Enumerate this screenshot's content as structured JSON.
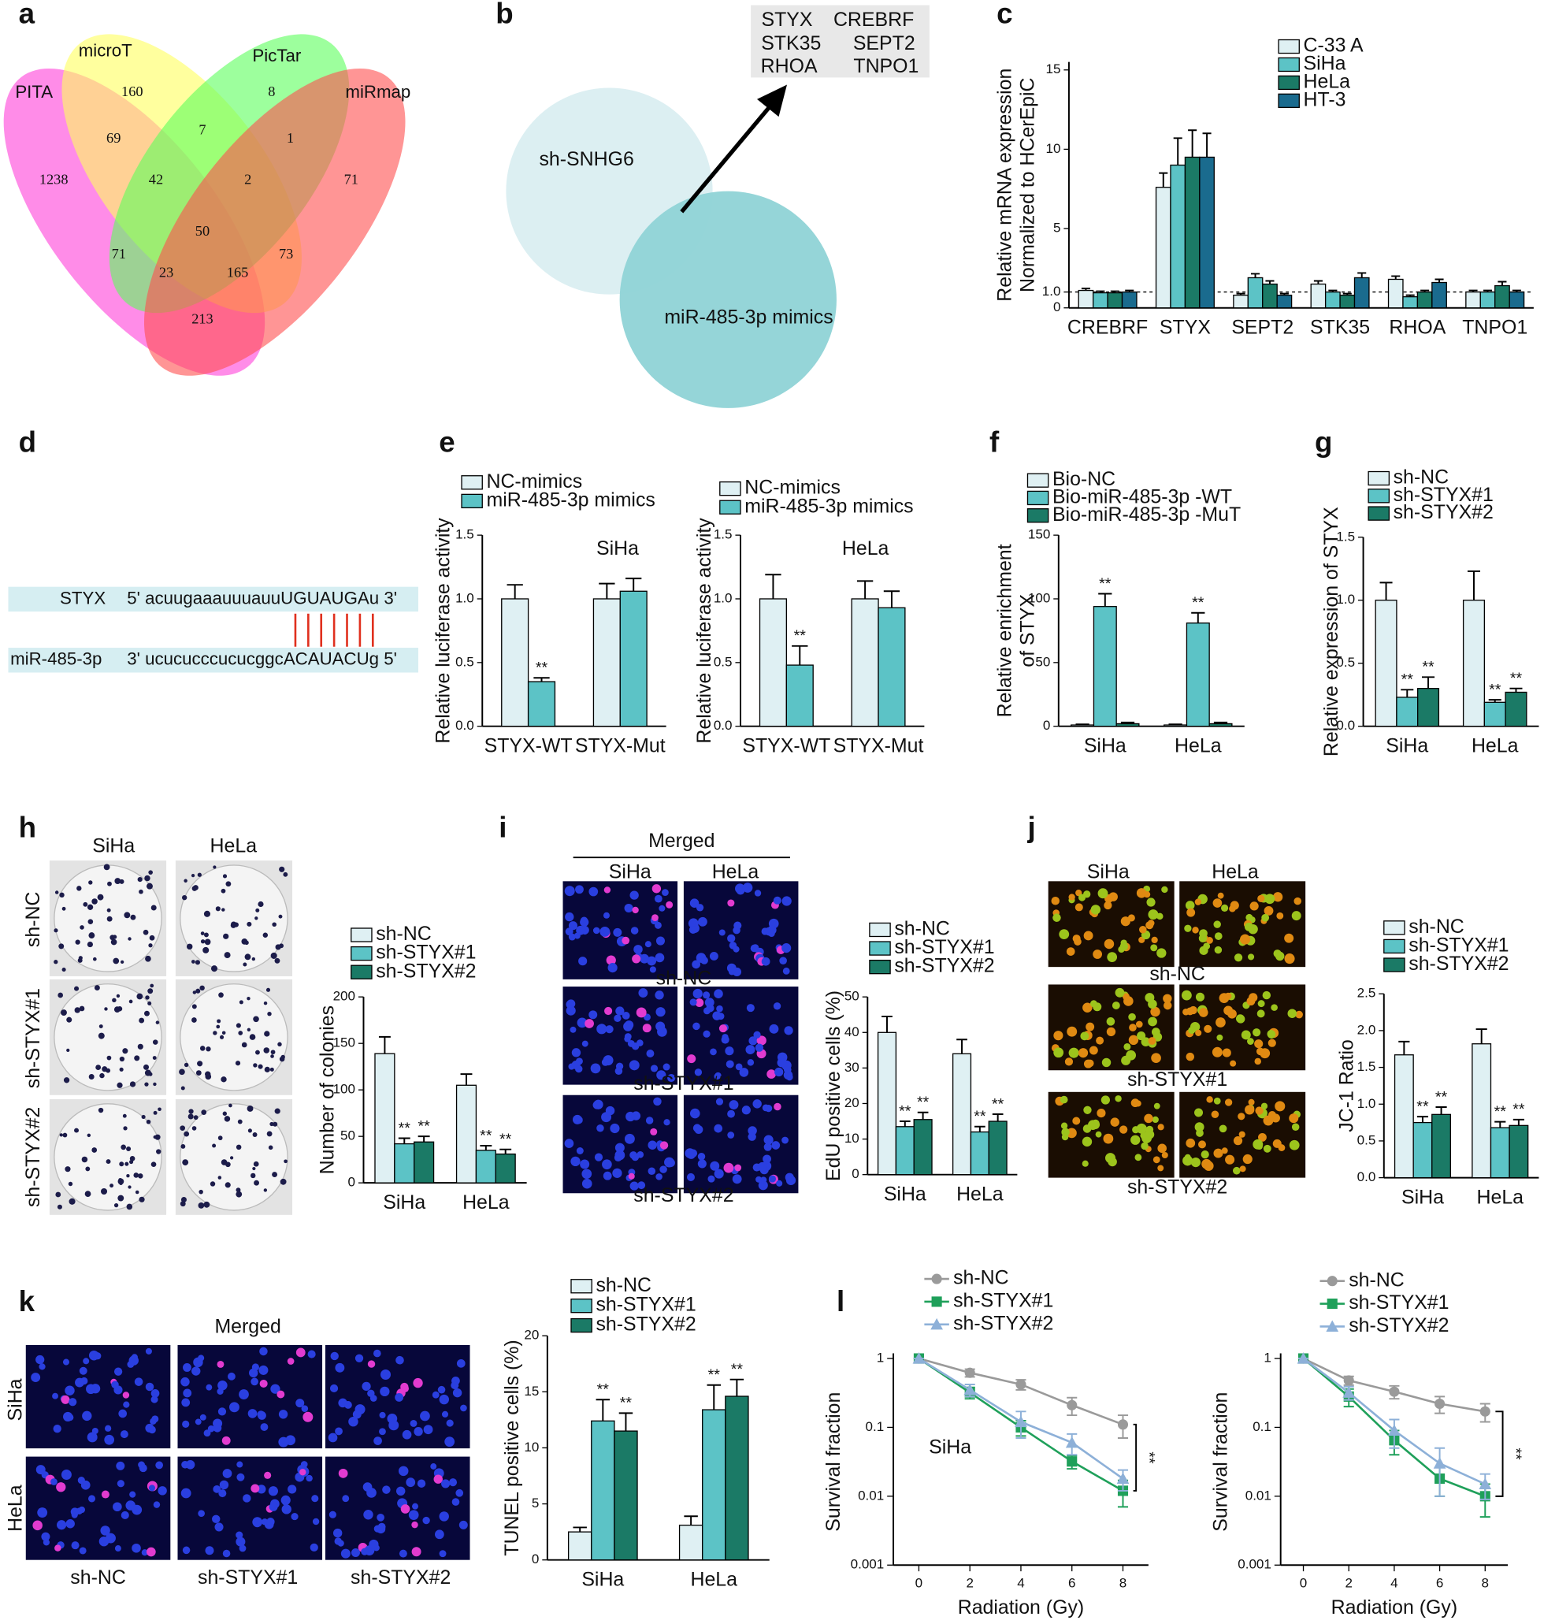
{
  "panel_labels": [
    "a",
    "b",
    "c",
    "d",
    "e",
    "f",
    "g",
    "h",
    "i",
    "j",
    "k",
    "l"
  ],
  "venn_a": {
    "sets": [
      "PITA",
      "microT",
      "PicTar",
      "miRmap"
    ],
    "regions": [
      1238,
      160,
      8,
      71,
      69,
      7,
      1,
      42,
      2,
      50,
      71,
      73,
      23,
      165,
      213
    ]
  },
  "venn_b": {
    "sets": [
      "sh-SNHG6",
      "miR-485-3p mimics"
    ],
    "genes": [
      "STYX",
      "CREBRF",
      "STK35",
      "SEPT2",
      "RHOA",
      "TNPO1"
    ]
  },
  "panel_d": {
    "rows": [
      {
        "name": "STYX",
        "sequence": "5' acuugaaauuuauuUGUAUGAu 3'"
      },
      {
        "name": "miR-485-3p",
        "sequence": "3' ucucucccucucggcACAUACUg 5'"
      }
    ]
  },
  "panel_h_images": {
    "columns": [
      "SiHa",
      "HeLa"
    ],
    "rows": [
      "sh-NC",
      "sh-STYX#1",
      "sh-STYX#2"
    ]
  },
  "panel_i_images": {
    "title": "Merged",
    "columns": [
      "SiHa",
      "HeLa"
    ],
    "rows": [
      "sh-NC",
      "sh-STYX#1",
      "sh-STYX#2"
    ]
  },
  "panel_j_images": {
    "columns": [
      "SiHa",
      "HeLa"
    ],
    "rows": [
      "sh-NC",
      "sh-STYX#1",
      "sh-STYX#2"
    ]
  },
  "panel_k_images": {
    "title": "Merged",
    "columns": [
      "sh-NC",
      "sh-STYX#1",
      "sh-STYX#2"
    ],
    "rows": [
      "SiHa",
      "HeLa"
    ]
  },
  "chart_data": [
    {
      "type": "bar",
      "ylabel": [
        "Relative mRNA expression",
        "Normalized to HCerEpiC"
      ],
      "categories": [
        "CREBRF",
        "STYX",
        "SEPT2",
        "STK35",
        "RHOA",
        "TNPO1"
      ],
      "series": [
        {
          "name": "C-33 A",
          "color": "#dff0f3",
          "values": [
            1.1,
            7.6,
            0.8,
            1.5,
            1.8,
            1.0
          ],
          "errors": [
            0.12,
            0.9,
            0.1,
            0.2,
            0.2,
            0.1
          ]
        },
        {
          "name": "SiHa",
          "color": "#5cc3c6",
          "values": [
            0.95,
            9.0,
            1.9,
            1.0,
            0.7,
            1.0
          ],
          "errors": [
            0.1,
            1.7,
            0.25,
            0.1,
            0.1,
            0.1
          ]
        },
        {
          "name": "HeLa",
          "color": "#1b7a66",
          "values": [
            0.95,
            9.5,
            1.5,
            0.8,
            1.0,
            1.4
          ],
          "errors": [
            0.1,
            1.7,
            0.2,
            0.1,
            0.1,
            0.25
          ]
        },
        {
          "name": "HT-3",
          "color": "#1a6b8e",
          "values": [
            1.0,
            9.5,
            0.8,
            1.9,
            1.6,
            1.0
          ],
          "errors": [
            0.1,
            1.5,
            0.1,
            0.3,
            0.2,
            0.1
          ]
        }
      ],
      "ylim": [
        0,
        15.5
      ],
      "yticks": [
        0,
        {
          "value": 1,
          "label": "1.0"
        },
        5,
        10,
        15
      ],
      "reference_line": 1
    },
    {
      "type": "bar",
      "subtitle": "SiHa",
      "ylabel": "Relative luciferase activity",
      "categories": [
        "STYX-WT",
        "STYX-Mut"
      ],
      "series": [
        {
          "name": "NC-mimics",
          "color": "#dff0f3",
          "values": [
            1.0,
            1.0
          ],
          "errors": [
            0.11,
            0.12
          ]
        },
        {
          "name": "miR-485-3p mimics",
          "color": "#5cc3c6",
          "values": [
            0.35,
            1.06
          ],
          "errors": [
            0.03,
            0.1
          ],
          "significance": [
            "**",
            null
          ]
        }
      ],
      "ylim": [
        0,
        1.5
      ],
      "yticks": [
        {
          "value": 0,
          "label": "0.0"
        },
        0.5,
        {
          "value": 1,
          "label": "1.0"
        },
        1.5
      ]
    },
    {
      "type": "bar",
      "subtitle": "HeLa",
      "ylabel": "Relative luciferase activity",
      "categories": [
        "STYX-WT",
        "STYX-Mut"
      ],
      "series": [
        {
          "name": "NC-mimics",
          "color": "#dff0f3",
          "values": [
            1.0,
            1.0
          ],
          "errors": [
            0.19,
            0.14
          ]
        },
        {
          "name": "miR-485-3p mimics",
          "color": "#5cc3c6",
          "values": [
            0.48,
            0.93
          ],
          "errors": [
            0.15,
            0.13
          ],
          "significance": [
            "**",
            null
          ]
        }
      ],
      "ylim": [
        0,
        1.5
      ],
      "yticks": [
        {
          "value": 0,
          "label": "0.0"
        },
        0.5,
        {
          "value": 1,
          "label": "1.0"
        },
        1.5
      ]
    },
    {
      "type": "bar",
      "ylabel": [
        "Relative enrichment",
        "of STYX"
      ],
      "categories": [
        "SiHa",
        "HeLa"
      ],
      "series": [
        {
          "name": "Bio-NC",
          "color": "#dff0f3",
          "values": [
            1,
            1
          ],
          "errors": [
            0.5,
            0.5
          ]
        },
        {
          "name": "Bio-miR-485-3p -WT",
          "color": "#5cc3c6",
          "values": [
            94,
            81
          ],
          "errors": [
            10,
            8
          ],
          "significance": [
            "**",
            "**"
          ]
        },
        {
          "name": "Bio-miR-485-3p -MuT",
          "color": "#1b7a66",
          "values": [
            2,
            2
          ],
          "errors": [
            1,
            1
          ]
        }
      ],
      "ylim": [
        0,
        150
      ],
      "yticks": [
        0,
        50,
        100,
        150
      ]
    },
    {
      "type": "bar",
      "ylabel": "Relative expression of STYX",
      "categories": [
        "SiHa",
        "HeLa"
      ],
      "series": [
        {
          "name": "sh-NC",
          "color": "#dff0f3",
          "values": [
            1.0,
            1.0
          ],
          "errors": [
            0.14,
            0.23
          ]
        },
        {
          "name": "sh-STYX#1",
          "color": "#5cc3c6",
          "values": [
            0.23,
            0.19
          ],
          "errors": [
            0.06,
            0.02
          ],
          "significance": [
            "**",
            "**"
          ]
        },
        {
          "name": "sh-STYX#2",
          "color": "#1b7a66",
          "values": [
            0.3,
            0.27
          ],
          "errors": [
            0.09,
            0.03
          ],
          "significance": [
            "**",
            "**"
          ]
        }
      ],
      "ylim": [
        0,
        1.5
      ],
      "yticks": [
        {
          "value": 0,
          "label": "0.0"
        },
        0.5,
        {
          "value": 1,
          "label": "1.0"
        },
        1.5
      ]
    },
    {
      "type": "bar",
      "ylabel": "Number of colonies",
      "categories": [
        "SiHa",
        "HeLa"
      ],
      "series": [
        {
          "name": "sh-NC",
          "color": "#dff0f3",
          "values": [
            139,
            105
          ],
          "errors": [
            18,
            12
          ]
        },
        {
          "name": "sh-STYX#1",
          "color": "#5cc3c6",
          "values": [
            42,
            35
          ],
          "errors": [
            6,
            5
          ],
          "significance": [
            "**",
            "**"
          ]
        },
        {
          "name": "sh-STYX#2",
          "color": "#1b7a66",
          "values": [
            44,
            31
          ],
          "errors": [
            6,
            5
          ],
          "significance": [
            "**",
            "**"
          ]
        }
      ],
      "ylim": [
        0,
        200
      ],
      "yticks": [
        0,
        50,
        100,
        150,
        200
      ]
    },
    {
      "type": "bar",
      "ylabel": "EdU positive cells (%)",
      "categories": [
        "SiHa",
        "HeLa"
      ],
      "series": [
        {
          "name": "sh-NC",
          "color": "#dff0f3",
          "values": [
            40,
            34
          ],
          "errors": [
            4.5,
            4
          ]
        },
        {
          "name": "sh-STYX#1",
          "color": "#5cc3c6",
          "values": [
            13.5,
            12
          ],
          "errors": [
            1.5,
            1.5
          ],
          "significance": [
            "**",
            "**"
          ]
        },
        {
          "name": "sh-STYX#2",
          "color": "#1b7a66",
          "values": [
            15.5,
            15
          ],
          "errors": [
            2,
            2
          ],
          "significance": [
            "**",
            "**"
          ]
        }
      ],
      "ylim": [
        0,
        50
      ],
      "yticks": [
        0,
        10,
        20,
        30,
        40,
        50
      ]
    },
    {
      "type": "bar",
      "ylabel": "JC-1 Ratio",
      "categories": [
        "SiHa",
        "HeLa"
      ],
      "series": [
        {
          "name": "sh-NC",
          "color": "#dff0f3",
          "values": [
            1.67,
            1.82
          ],
          "errors": [
            0.18,
            0.2
          ]
        },
        {
          "name": "sh-STYX#1",
          "color": "#5cc3c6",
          "values": [
            0.75,
            0.68
          ],
          "errors": [
            0.08,
            0.08
          ],
          "significance": [
            "**",
            "**"
          ]
        },
        {
          "name": "sh-STYX#2",
          "color": "#1b7a66",
          "values": [
            0.86,
            0.71
          ],
          "errors": [
            0.1,
            0.08
          ],
          "significance": [
            "**",
            "**"
          ]
        }
      ],
      "ylim": [
        0,
        2.5
      ],
      "yticks": [
        {
          "value": 0,
          "label": "0.0"
        },
        0.5,
        {
          "value": 1,
          "label": "1.0"
        },
        1.5,
        {
          "value": 2,
          "label": "2.0"
        },
        2.5
      ]
    },
    {
      "type": "bar",
      "ylabel": "TUNEL positive cells (%)",
      "categories": [
        "SiHa",
        "HeLa"
      ],
      "series": [
        {
          "name": "sh-NC",
          "color": "#dff0f3",
          "values": [
            2.5,
            3.1
          ],
          "errors": [
            0.4,
            0.8
          ]
        },
        {
          "name": "sh-STYX#1",
          "color": "#5cc3c6",
          "values": [
            12.4,
            13.4
          ],
          "errors": [
            1.9,
            2.2
          ],
          "significance": [
            "**",
            "**"
          ]
        },
        {
          "name": "sh-STYX#2",
          "color": "#1b7a66",
          "values": [
            11.5,
            14.6
          ],
          "errors": [
            1.6,
            1.5
          ],
          "significance": [
            "**",
            "**"
          ]
        }
      ],
      "ylim": [
        0,
        20
      ],
      "yticks": [
        0,
        5,
        10,
        15,
        20
      ]
    },
    {
      "type": "line",
      "annotation": "SiHa",
      "xlabel": "Radiation (Gy)",
      "ylabel": "Survival fraction",
      "log_y": true,
      "x": [
        0,
        2,
        4,
        6,
        8
      ],
      "series": [
        {
          "name": "sh-NC",
          "color": "#9a9a9a",
          "marker": "circle",
          "values": [
            1,
            0.62,
            0.42,
            0.21,
            0.11
          ],
          "errors": [
            0,
            0.08,
            0.07,
            0.06,
            0.04
          ]
        },
        {
          "name": "sh-STYX#1",
          "color": "#1fa05a",
          "marker": "square",
          "values": [
            1,
            0.32,
            0.1,
            0.032,
            0.012
          ],
          "errors": [
            0,
            0.06,
            0.025,
            0.007,
            0.005
          ]
        },
        {
          "name": "sh-STYX#2",
          "color": "#8db0d8",
          "marker": "triangle",
          "values": [
            1,
            0.35,
            0.12,
            0.06,
            0.018
          ],
          "errors": [
            0,
            0.07,
            0.05,
            0.02,
            0.006
          ]
        }
      ],
      "xlim": [
        -1,
        9
      ],
      "xticks": [
        0,
        2,
        4,
        6,
        8
      ],
      "ylim": [
        0.001,
        1
      ],
      "yticks": [
        0.001,
        0.01,
        0.1,
        1
      ],
      "significance": "**"
    },
    {
      "type": "line",
      "xlabel": "Radiation (Gy)",
      "ylabel": "Survival fraction",
      "log_y": true,
      "x": [
        0,
        2,
        4,
        6,
        8
      ],
      "series": [
        {
          "name": "sh-NC",
          "color": "#9a9a9a",
          "marker": "circle",
          "values": [
            1,
            0.48,
            0.33,
            0.22,
            0.17
          ],
          "errors": [
            0,
            0.07,
            0.07,
            0.06,
            0.05
          ]
        },
        {
          "name": "sh-STYX#1",
          "color": "#1fa05a",
          "marker": "square",
          "values": [
            1,
            0.28,
            0.065,
            0.018,
            0.01
          ],
          "errors": [
            0,
            0.08,
            0.025,
            0.008,
            0.005
          ]
        },
        {
          "name": "sh-STYX#2",
          "color": "#8db0d8",
          "marker": "triangle",
          "values": [
            1,
            0.32,
            0.09,
            0.03,
            0.015
          ],
          "errors": [
            0,
            0.07,
            0.04,
            0.02,
            0.006
          ]
        }
      ],
      "xlim": [
        -1,
        9
      ],
      "xticks": [
        0,
        2,
        4,
        6,
        8
      ],
      "ylim": [
        0.001,
        1
      ],
      "yticks": [
        0.001,
        0.01,
        0.1,
        1
      ],
      "significance": "**"
    }
  ]
}
